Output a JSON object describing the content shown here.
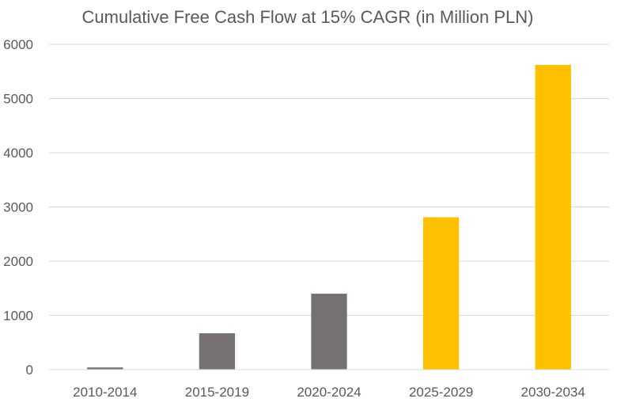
{
  "chart_data": {
    "type": "bar",
    "title": "Cumulative Free Cash Flow at 15% CAGR (in Million PLN)",
    "xlabel": "",
    "ylabel": "",
    "categories": [
      "2010-2014",
      "2015-2019",
      "2020-2024",
      "2025-2029",
      "2030-2034"
    ],
    "values": [
      40,
      670,
      1400,
      2810,
      5620
    ],
    "bar_colors": [
      "#767171",
      "#767171",
      "#767171",
      "#ffc000",
      "#ffc000"
    ],
    "ylim": [
      0,
      6000
    ],
    "yticks": [
      "0",
      "1000",
      "2000",
      "3000",
      "4000",
      "5000",
      "6000"
    ],
    "grid": true,
    "legend": "none"
  }
}
